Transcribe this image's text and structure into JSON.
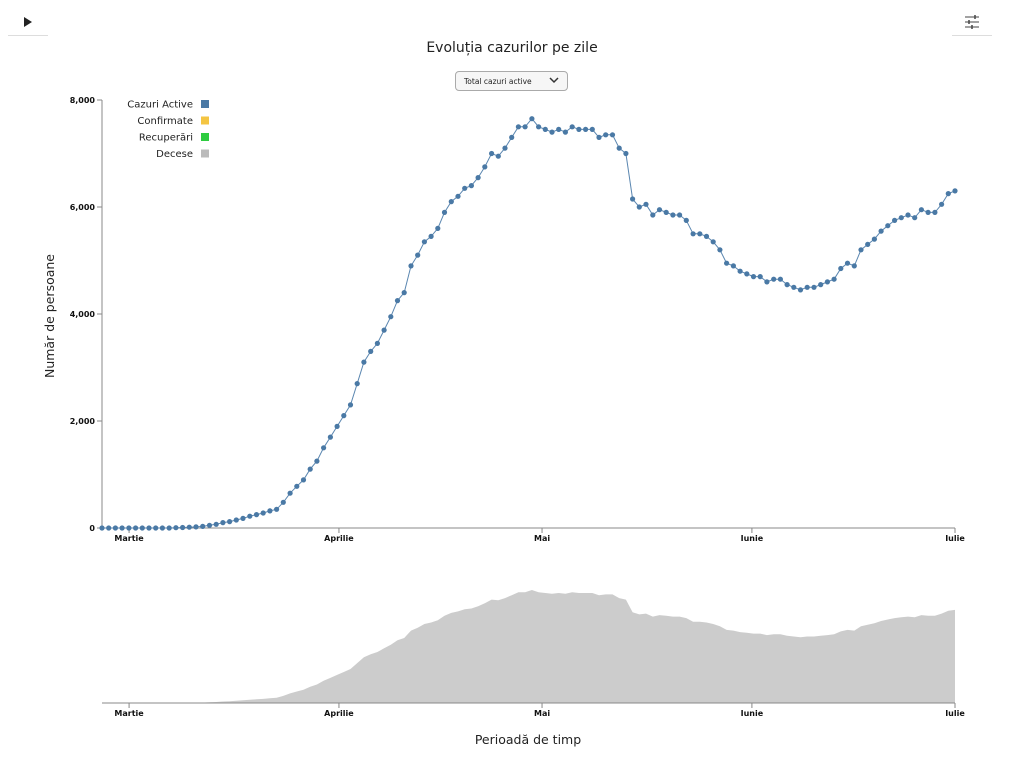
{
  "controls": {
    "play_icon": "play-icon",
    "filter_icon": "sliders-icon",
    "select_value": "Total cazuri active"
  },
  "colors": {
    "active": "#4a79a5",
    "active_line": "#5a86b0",
    "confirmed": "#f4c542",
    "recovered": "#2ecc40",
    "deaths": "#bbbbbb",
    "brush_area": "#cccccc"
  },
  "chart_data": {
    "type": "line",
    "title": "Evoluția cazurilor pe zile",
    "xlabel": "Perioadă de timp",
    "ylabel": "Număr de persoane",
    "ylim": [
      0,
      8000
    ],
    "y_ticks": [
      "0",
      "2,000",
      "4,000",
      "6,000",
      "8,000"
    ],
    "x_ticks": [
      "Martie",
      "Aprilie",
      "Mai",
      "Iunie",
      "Iulie"
    ],
    "x_start": "2020-02-26",
    "x_end": "2020-07-01",
    "legend": {
      "position": "top-left",
      "items": [
        {
          "label": "Cazuri Active",
          "color": "#4a79a5"
        },
        {
          "label": "Confirmate",
          "color": "#f4c542"
        },
        {
          "label": "Recuperări",
          "color": "#2ecc40"
        },
        {
          "label": "Decese",
          "color": "#bbbbbb"
        }
      ]
    },
    "series": [
      {
        "name": "Cazuri Active",
        "values": [
          0,
          0,
          0,
          0,
          0,
          0,
          0,
          0,
          0,
          0,
          0,
          5,
          10,
          15,
          20,
          30,
          50,
          70,
          100,
          120,
          150,
          180,
          220,
          250,
          280,
          320,
          350,
          480,
          650,
          780,
          900,
          1100,
          1250,
          1500,
          1700,
          1900,
          2100,
          2300,
          2700,
          3100,
          3300,
          3450,
          3700,
          3950,
          4250,
          4400,
          4900,
          5100,
          5350,
          5450,
          5600,
          5900,
          6100,
          6200,
          6350,
          6400,
          6550,
          6750,
          7000,
          6950,
          7100,
          7300,
          7500,
          7500,
          7650,
          7500,
          7450,
          7400,
          7450,
          7400,
          7500,
          7450,
          7450,
          7450,
          7300,
          7350,
          7350,
          7100,
          7000,
          6150,
          6000,
          6050,
          5850,
          5950,
          5900,
          5850,
          5850,
          5750,
          5500,
          5500,
          5450,
          5350,
          5200,
          4950,
          4900,
          4800,
          4750,
          4700,
          4700,
          4600,
          4650,
          4650,
          4550,
          4500,
          4450,
          4500,
          4500,
          4550,
          4600,
          4650,
          4850,
          4950,
          4900,
          5200,
          5300,
          5400,
          5550,
          5650,
          5750,
          5800,
          5850,
          5800,
          5950,
          5900,
          5900,
          6050,
          6250,
          6300
        ]
      }
    ]
  }
}
